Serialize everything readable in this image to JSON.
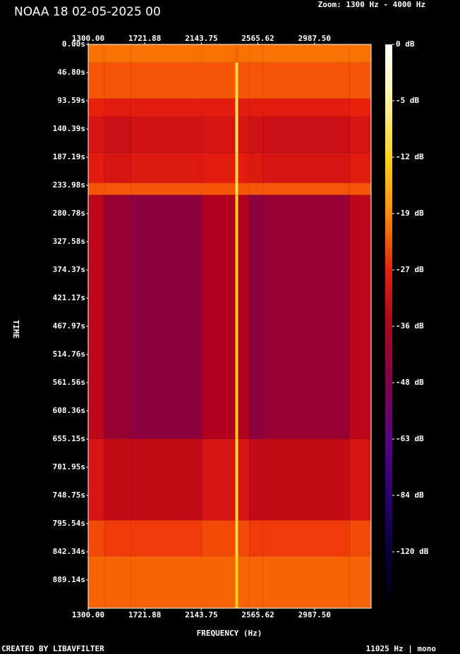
{
  "chart_data": {
    "type": "spectrogram",
    "title": "NOAA 18 02-05-2025 00",
    "zoom_label": "Zoom: 1300 Hz - 4000 Hz",
    "x_label": "FREQUENCY (Hz)",
    "y_label": "TIME",
    "footer_left": "CREATED BY LIBAVFILTER",
    "footer_right": "11025 Hz | mono",
    "xlim": [
      1300,
      3409.375
    ],
    "xticks": [
      {
        "value": 1300,
        "label": "1300.00"
      },
      {
        "value": 1721.88,
        "label": "1721.88"
      },
      {
        "value": 2143.75,
        "label": "2143.75"
      },
      {
        "value": 2565.62,
        "label": "2565.62"
      },
      {
        "value": 2987.5,
        "label": "2987.50"
      }
    ],
    "ylim": [
      0,
      935.94
    ],
    "yticks": [
      {
        "value": 0,
        "label": "0.00s"
      },
      {
        "value": 46.8,
        "label": "46.80s"
      },
      {
        "value": 93.59,
        "label": "93.59s"
      },
      {
        "value": 140.39,
        "label": "140.39s"
      },
      {
        "value": 187.19,
        "label": "187.19s"
      },
      {
        "value": 233.98,
        "label": "233.98s"
      },
      {
        "value": 280.78,
        "label": "280.78s"
      },
      {
        "value": 327.58,
        "label": "327.58s"
      },
      {
        "value": 374.37,
        "label": "374.37s"
      },
      {
        "value": 421.17,
        "label": "421.17s"
      },
      {
        "value": 467.97,
        "label": "467.97s"
      },
      {
        "value": 514.76,
        "label": "514.76s"
      },
      {
        "value": 561.56,
        "label": "561.56s"
      },
      {
        "value": 608.36,
        "label": "608.36s"
      },
      {
        "value": 655.15,
        "label": "655.15s"
      },
      {
        "value": 701.95,
        "label": "701.95s"
      },
      {
        "value": 748.75,
        "label": "748.75s"
      },
      {
        "value": 795.54,
        "label": "795.54s"
      },
      {
        "value": 842.34,
        "label": "842.34s"
      },
      {
        "value": 889.14,
        "label": "889.14s"
      }
    ],
    "x_bins": [
      1300,
      1420,
      1620,
      2150,
      2397,
      2418,
      2500,
      2600,
      3250,
      3409.375
    ],
    "y_bins": [
      0,
      30,
      90,
      120,
      180,
      230,
      250,
      655,
      790,
      850,
      935.94
    ],
    "values": [
      [
        -21,
        -21,
        -21,
        -21,
        -22,
        -21,
        -21,
        -21,
        -21
      ],
      [
        -23,
        -23,
        -23,
        -23,
        -10,
        -23,
        -23,
        -23,
        -23
      ],
      [
        -27,
        -28,
        -28,
        -28,
        -9,
        -28,
        -28,
        -28,
        -27
      ],
      [
        -30,
        -32,
        -31,
        -30,
        -9,
        -30,
        -31,
        -32,
        -30
      ],
      [
        -28,
        -30,
        -29,
        -28,
        -10,
        -28,
        -29,
        -30,
        -28
      ],
      [
        -23,
        -23,
        -23,
        -23,
        -9,
        -23,
        -23,
        -23,
        -23
      ],
      [
        -34,
        -42,
        -45,
        -36,
        -12,
        -36,
        -45,
        -42,
        -34
      ],
      [
        -30,
        -33,
        -33,
        -30,
        -11,
        -30,
        -33,
        -33,
        -30
      ],
      [
        -24,
        -25,
        -25,
        -24,
        -10,
        -24,
        -25,
        -25,
        -24
      ],
      [
        -22,
        -22,
        -22,
        -22,
        -12,
        -22,
        -22,
        -22,
        -22
      ]
    ],
    "colorbar": {
      "ticks": [
        {
          "value": 0,
          "label": "0 dB"
        },
        {
          "value": -5,
          "label": "-5 dB"
        },
        {
          "value": -12,
          "label": "-12 dB"
        },
        {
          "value": -19,
          "label": "-19 dB"
        },
        {
          "value": -27,
          "label": "-27 dB"
        },
        {
          "value": -36,
          "label": "-36 dB"
        },
        {
          "value": -48,
          "label": "-48 dB"
        },
        {
          "value": -63,
          "label": "-63 dB"
        },
        {
          "value": -84,
          "label": "-84 dB"
        },
        {
          "value": -120,
          "label": "-120 dB"
        }
      ],
      "colors": [
        "#ffffff",
        "#fff3a0",
        "#ffd21a",
        "#ff8c00",
        "#e8200c",
        "#b0001e",
        "#80004a",
        "#5a0082",
        "#2a0070",
        "#07003a"
      ]
    }
  }
}
